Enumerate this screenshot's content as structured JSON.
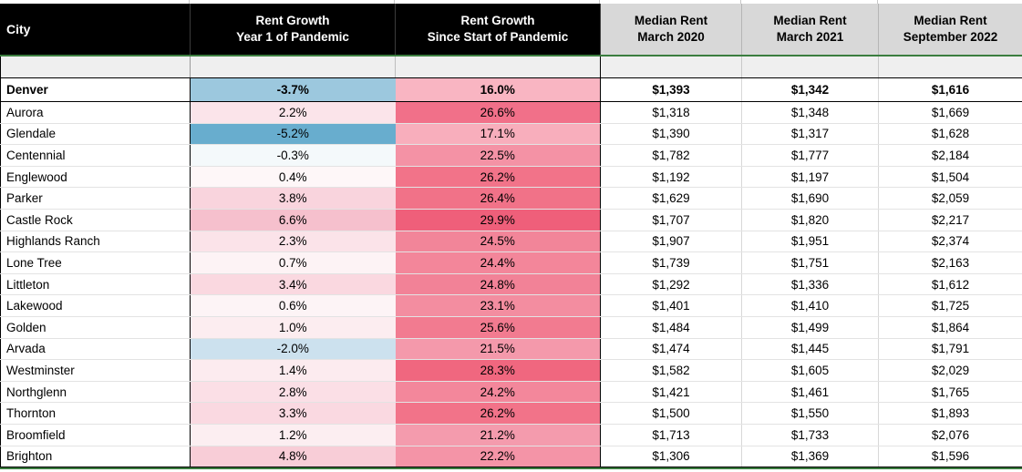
{
  "table": {
    "headers": [
      {
        "label": "City"
      },
      {
        "label": "Rent Growth\nYear 1 of Pandemic"
      },
      {
        "label": "Rent Growth\nSince Start of Pandemic"
      },
      {
        "label": "Median Rent\nMarch 2020"
      },
      {
        "label": "Median Rent\nMarch 2021"
      },
      {
        "label": "Median Rent\nSeptember 2022"
      }
    ]
  },
  "chart_data": {
    "type": "table",
    "columns": [
      "City",
      "Rent Growth Year 1 of Pandemic",
      "Rent Growth Since Start of Pandemic",
      "Median Rent March 2020",
      "Median Rent March 2021",
      "Median Rent September 2022"
    ],
    "rows": [
      [
        "Denver",
        "-3.7%",
        "16.0%",
        "$1,393",
        "$1,342",
        "$1,616"
      ],
      [
        "Aurora",
        "2.2%",
        "26.6%",
        "$1,318",
        "$1,348",
        "$1,669"
      ],
      [
        "Glendale",
        "-5.2%",
        "17.1%",
        "$1,390",
        "$1,317",
        "$1,628"
      ],
      [
        "Centennial",
        "-0.3%",
        "22.5%",
        "$1,782",
        "$1,777",
        "$2,184"
      ],
      [
        "Englewood",
        "0.4%",
        "26.2%",
        "$1,192",
        "$1,197",
        "$1,504"
      ],
      [
        "Parker",
        "3.8%",
        "26.4%",
        "$1,629",
        "$1,690",
        "$2,059"
      ],
      [
        "Castle Rock",
        "6.6%",
        "29.9%",
        "$1,707",
        "$1,820",
        "$2,217"
      ],
      [
        "Highlands Ranch",
        "2.3%",
        "24.5%",
        "$1,907",
        "$1,951",
        "$2,374"
      ],
      [
        "Lone Tree",
        "0.7%",
        "24.4%",
        "$1,739",
        "$1,751",
        "$2,163"
      ],
      [
        "Littleton",
        "3.4%",
        "24.8%",
        "$1,292",
        "$1,336",
        "$1,612"
      ],
      [
        "Lakewood",
        "0.6%",
        "23.1%",
        "$1,401",
        "$1,410",
        "$1,725"
      ],
      [
        "Golden",
        "1.0%",
        "25.6%",
        "$1,484",
        "$1,499",
        "$1,864"
      ],
      [
        "Arvada",
        "-2.0%",
        "21.5%",
        "$1,474",
        "$1,445",
        "$1,791"
      ],
      [
        "Westminster",
        "1.4%",
        "28.3%",
        "$1,582",
        "$1,605",
        "$2,029"
      ],
      [
        "Northglenn",
        "2.8%",
        "24.2%",
        "$1,421",
        "$1,461",
        "$1,765"
      ],
      [
        "Thornton",
        "3.3%",
        "26.2%",
        "$1,500",
        "$1,550",
        "$1,893"
      ],
      [
        "Broomfield",
        "1.2%",
        "21.2%",
        "$1,713",
        "$1,733",
        "$2,076"
      ],
      [
        "Brighton",
        "4.8%",
        "22.2%",
        "$1,306",
        "$1,369",
        "$1,596"
      ]
    ]
  },
  "styles": {
    "header_black_bg": "#000000",
    "header_black_text": "#ffffff",
    "header_gray_bg": "#d8d8d8",
    "spacer_bg": "#efefef",
    "accent_green": "#3b7d3f",
    "negative_scale_max": "#68adce",
    "positive_scale_max": "#ef5f7a",
    "growth1_bg": [
      "#9cc8de",
      "#fbe4ea",
      "#68adce",
      "#f4f9fb",
      "#fef7f8",
      "#f9d4dd",
      "#f6c0cd",
      "#fbe3e9",
      "#fdf3f5",
      "#fad8e0",
      "#fdf4f6",
      "#fcedf0",
      "#cce1ee",
      "#fcebef",
      "#fbdfe6",
      "#fad9e1",
      "#fceef1",
      "#f8cdd7"
    ],
    "growth2_bg": [
      "#f9b5c2",
      "#f17089",
      "#f8aebc",
      "#f492a5",
      "#f27389",
      "#f17288",
      "#ef5f7a",
      "#f28599",
      "#f3869a",
      "#f28297",
      "#f38da0",
      "#f27b90",
      "#f499ab",
      "#f0677f",
      "#f3879b",
      "#f27389",
      "#f49bad",
      "#f494a7"
    ]
  }
}
